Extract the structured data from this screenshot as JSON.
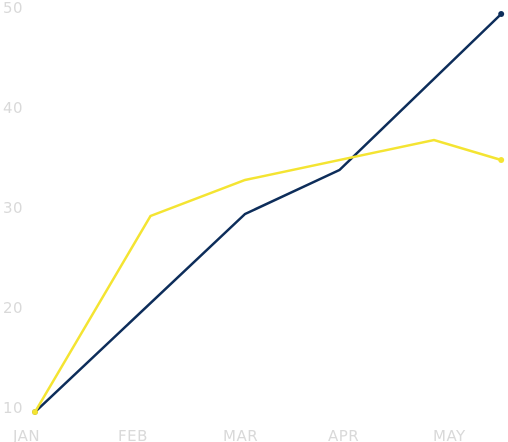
{
  "chart_data": {
    "type": "line",
    "title": "",
    "xlabel": "",
    "ylabel": "",
    "x_ticks": [
      "JAN",
      "FEB",
      "MAR",
      "APR",
      "MAY"
    ],
    "y_ticks": [
      "10",
      "20",
      "30",
      "40",
      "50"
    ],
    "ylim": [
      10,
      50
    ],
    "grid": false,
    "legend": "none",
    "series": [
      {
        "color": "#0d2d5a",
        "points": [
          {
            "x": 0,
            "y": 9.6
          },
          {
            "x": 2,
            "y": 29.4
          },
          {
            "x": 2.9,
            "y": 33.8
          },
          {
            "x": 4.44,
            "y": 49.4
          }
        ]
      },
      {
        "color": "#f4e432",
        "points": [
          {
            "x": 0,
            "y": 9.6
          },
          {
            "x": 1.1,
            "y": 29.2
          },
          {
            "x": 2,
            "y": 32.8
          },
          {
            "x": 3.8,
            "y": 36.8
          },
          {
            "x": 4.44,
            "y": 34.8
          }
        ]
      }
    ]
  }
}
